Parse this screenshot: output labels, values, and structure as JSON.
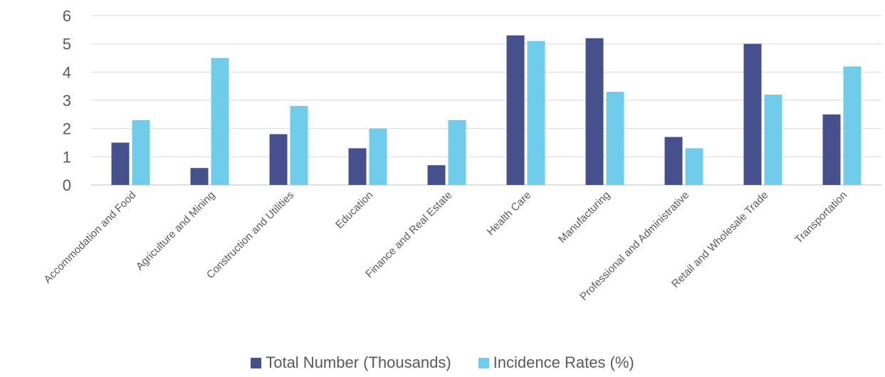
{
  "chart_data": {
    "type": "bar",
    "title": "",
    "xlabel": "",
    "ylabel": "",
    "ylim": [
      0,
      6
    ],
    "yticks": [
      0,
      1,
      2,
      3,
      4,
      5,
      6
    ],
    "grid": true,
    "legend_position": "bottom",
    "categories": [
      "Accommodation and Food",
      "Agriculture and Mining",
      "Construction and Utilities",
      "Education",
      "Finance and Real Estate",
      "Health Care",
      "Manufacturing",
      "Professional and Administrative",
      "Retail and Wholesale Trade",
      "Transportation"
    ],
    "series": [
      {
        "name": "Total Number (Thousands)",
        "color": "#46508c",
        "values": [
          1.5,
          0.6,
          1.8,
          1.3,
          0.7,
          5.3,
          5.2,
          1.7,
          5.0,
          2.5
        ]
      },
      {
        "name": "Incidence Rates (%)",
        "color": "#6fcdeb",
        "values": [
          2.3,
          4.5,
          2.8,
          2.0,
          2.3,
          5.1,
          3.3,
          1.3,
          3.2,
          4.2
        ]
      }
    ]
  }
}
